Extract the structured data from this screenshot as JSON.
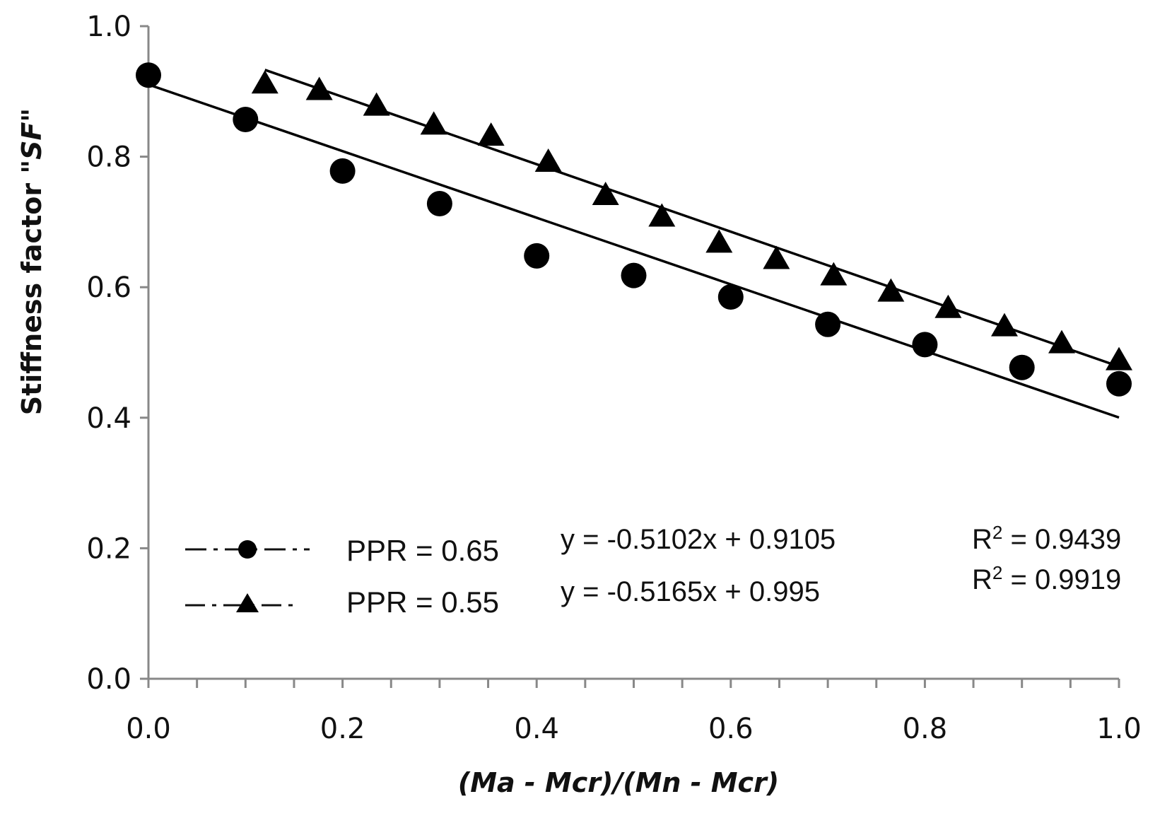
{
  "chart_data": {
    "type": "scatter",
    "title": "",
    "xlabel": "(Ma - Mcr)/(Mn - Mcr)",
    "ylabel": {
      "prefix": "Stiffness factor \"",
      "emphasis": "SF",
      "suffix": "\""
    },
    "xlim": [
      0,
      1
    ],
    "ylim": [
      0,
      1
    ],
    "x_ticks": [
      "0.0",
      "0.2",
      "0.4",
      "0.6",
      "0.8",
      "1.0"
    ],
    "y_ticks": [
      "0.0",
      "0.2",
      "0.4",
      "0.6",
      "0.8",
      "1.0"
    ],
    "x_tick_values": [
      0,
      0.2,
      0.4,
      0.6,
      0.8,
      1.0
    ],
    "y_tick_values": [
      0,
      0.2,
      0.4,
      0.6,
      0.8,
      1.0
    ],
    "x_minor_step": 0.05,
    "grid": false,
    "legend_position": "bottom-center",
    "series": [
      {
        "name": "PPR = 0.65",
        "marker": "circle",
        "equation": "y = -0.5102x + 0.9105",
        "r2_label": "R",
        "r2_sup": "2",
        "r2_value": " = 0.9439",
        "trend": {
          "slope": -0.5102,
          "intercept": 0.9105,
          "x_range": [
            0,
            1
          ]
        },
        "x": [
          0.0,
          0.1,
          0.2,
          0.3,
          0.4,
          0.5,
          0.6,
          0.7,
          0.8,
          0.9,
          1.0
        ],
        "y": [
          0.925,
          0.857,
          0.778,
          0.728,
          0.648,
          0.618,
          0.585,
          0.543,
          0.512,
          0.477,
          0.452
        ]
      },
      {
        "name": "PPR = 0.55",
        "marker": "triangle",
        "equation": "y = -0.5165x + 0.995",
        "r2_label": "R",
        "r2_sup": "2",
        "r2_value": " = 0.9919",
        "trend": {
          "slope": -0.5165,
          "intercept": 0.995,
          "x_range": [
            0.12,
            1
          ]
        },
        "x": [
          0.12,
          0.176,
          0.235,
          0.294,
          0.353,
          0.412,
          0.471,
          0.529,
          0.588,
          0.647,
          0.706,
          0.765,
          0.824,
          0.882,
          0.941,
          1.0
        ],
        "y": [
          0.912,
          0.902,
          0.878,
          0.849,
          0.832,
          0.792,
          0.741,
          0.708,
          0.668,
          0.643,
          0.618,
          0.593,
          0.568,
          0.54,
          0.514,
          0.488
        ]
      }
    ]
  }
}
